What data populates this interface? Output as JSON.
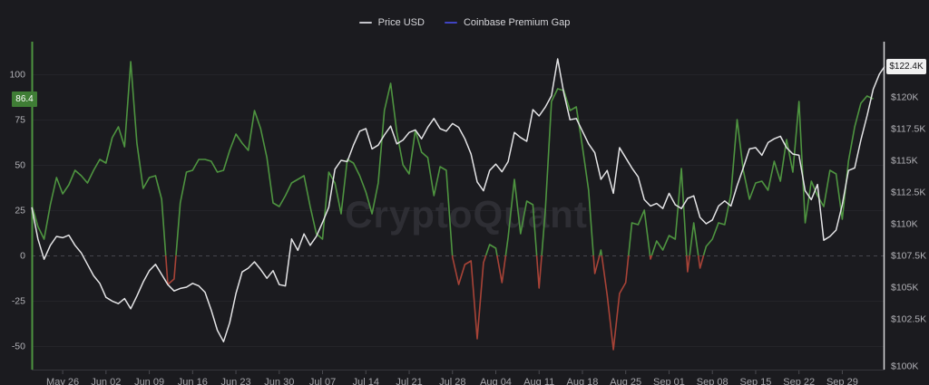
{
  "watermark": "CryptoQuant",
  "legend": {
    "items": [
      {
        "label": "Price USD",
        "color": "#c4c4ca"
      },
      {
        "label": "Coinbase Premium Gap",
        "color": "#4044c2"
      }
    ]
  },
  "badges": {
    "premium": {
      "value": "86.4",
      "bg": "#3f7d35"
    },
    "price": {
      "value": "$122.4K",
      "bg": "#f0f0f0"
    }
  },
  "axes": {
    "left_ticks": [
      100,
      75,
      50,
      25,
      0,
      -25,
      -50
    ],
    "right_tick_labels": [
      "$122.5K",
      "$120K",
      "$117.5K",
      "$115K",
      "$112.5K",
      "$110K",
      "$107.5K",
      "$105K",
      "$102.5K",
      "$100K"
    ],
    "right_tick_values": [
      122.5,
      120,
      117.5,
      115,
      112.5,
      110,
      107.5,
      105,
      102.5,
      100
    ],
    "x_tick_labels": [
      "May 26",
      "Jun 02",
      "Jun 09",
      "Jun 16",
      "Jun 23",
      "Jun 30",
      "Jul 07",
      "Jul 14",
      "Jul 21",
      "Jul 28",
      "Aug 04",
      "Aug 11",
      "Aug 18",
      "Aug 25",
      "Sep 01",
      "Sep 08",
      "Sep 15",
      "Sep 22",
      "Sep 29"
    ]
  },
  "chart_data": {
    "type": "line",
    "title": "",
    "x_start": "May 21",
    "x_interval_days": 1,
    "x_tick_labels": [
      "May 26",
      "Jun 02",
      "Jun 09",
      "Jun 16",
      "Jun 23",
      "Jun 30",
      "Jul 07",
      "Jul 14",
      "Jul 21",
      "Jul 28",
      "Aug 04",
      "Aug 11",
      "Aug 18",
      "Aug 25",
      "Sep 01",
      "Sep 08",
      "Sep 15",
      "Sep 22",
      "Sep 29"
    ],
    "left_axis": {
      "ticks": [
        100,
        75,
        50,
        25,
        0,
        -25,
        -50
      ],
      "ylim": [
        -63,
        118
      ],
      "zero_line": "dashed",
      "current_value": 86.4
    },
    "right_axis": {
      "tick_values": [
        122.5,
        120,
        117.5,
        115,
        112.5,
        110,
        107.5,
        105,
        102.5,
        100
      ],
      "unit": "$K",
      "ylim": [
        98.4,
        124.4
      ],
      "current_value": 122.4
    },
    "grid": "horizontal-only",
    "legend_position": "top-center",
    "series": [
      {
        "name": "Price USD",
        "axis": "right",
        "color": "#e4e4e6",
        "unit": "USD thousands",
        "values": [
          111.3,
          108.8,
          107.2,
          108.3,
          109.0,
          108.9,
          109.1,
          108.3,
          107.7,
          106.8,
          105.9,
          105.3,
          104.2,
          103.9,
          103.7,
          104.1,
          103.3,
          104.3,
          105.4,
          106.3,
          106.8,
          106.0,
          105.2,
          104.7,
          104.9,
          105.0,
          105.3,
          105.1,
          104.6,
          103.2,
          101.6,
          100.7,
          102.2,
          104.5,
          106.2,
          106.5,
          107.0,
          106.4,
          105.7,
          106.3,
          105.2,
          105.1,
          108.8,
          107.9,
          109.2,
          108.3,
          109.0,
          110.1,
          111.3,
          114.3,
          115.0,
          114.9,
          116.2,
          117.3,
          117.5,
          115.9,
          116.2,
          117.0,
          117.7,
          116.3,
          116.6,
          117.2,
          117.4,
          116.7,
          117.6,
          118.3,
          117.5,
          117.3,
          117.9,
          117.6,
          116.7,
          115.5,
          113.3,
          112.6,
          114.2,
          114.7,
          114.1,
          114.9,
          117.2,
          116.8,
          116.5,
          119.0,
          118.5,
          119.2,
          120.1,
          123.0,
          120.3,
          118.2,
          118.3,
          117.3,
          116.3,
          115.6,
          113.5,
          114.2,
          112.4,
          116.0,
          115.2,
          114.4,
          113.7,
          111.9,
          111.4,
          111.6,
          111.2,
          112.4,
          111.5,
          111.2,
          112.0,
          112.2,
          110.5,
          110.0,
          110.3,
          111.4,
          111.8,
          111.4,
          113.0,
          114.4,
          115.9,
          116.0,
          115.4,
          116.4,
          116.7,
          116.9,
          116.0,
          115.5,
          115.4,
          112.6,
          111.9,
          113.1,
          108.7,
          109.0,
          109.5,
          111.5,
          114.2,
          114.4,
          116.6,
          118.5,
          120.6,
          121.8,
          122.4
        ]
      },
      {
        "name": "Coinbase Premium Gap",
        "axis": "left",
        "color_positive": "#4e9440",
        "color_negative": "#a84337",
        "unit": "USD",
        "values": [
          28,
          16,
          9,
          28,
          43,
          34,
          39,
          47,
          44,
          40,
          47,
          53,
          51,
          65,
          71,
          60,
          107,
          62,
          37,
          43,
          44,
          31,
          -16,
          -13,
          29,
          46,
          47,
          53,
          53,
          52,
          46,
          47,
          58,
          67,
          62,
          58,
          80,
          70,
          54,
          29,
          27,
          33,
          40,
          42,
          44,
          27,
          12,
          9,
          46,
          40,
          23,
          53,
          51,
          44,
          35,
          23,
          40,
          80,
          95,
          68,
          50,
          45,
          69,
          57,
          54,
          33,
          49,
          47,
          -1,
          -16,
          -5,
          -3,
          -46,
          -4,
          6,
          4,
          -15,
          10,
          42,
          12,
          30,
          28,
          -18,
          25,
          85,
          92,
          91,
          80,
          82,
          60,
          36,
          -10,
          3,
          -22,
          -52,
          -21,
          -15,
          18,
          17,
          25,
          -2,
          8,
          3,
          11,
          9,
          48,
          -9,
          18,
          -7,
          5,
          9,
          18,
          17,
          34,
          75,
          47,
          31,
          40,
          41,
          36,
          52,
          41,
          64,
          46,
          85,
          18,
          41,
          33,
          27,
          47,
          45,
          20,
          52,
          71,
          84,
          88,
          86.4
        ]
      }
    ]
  }
}
